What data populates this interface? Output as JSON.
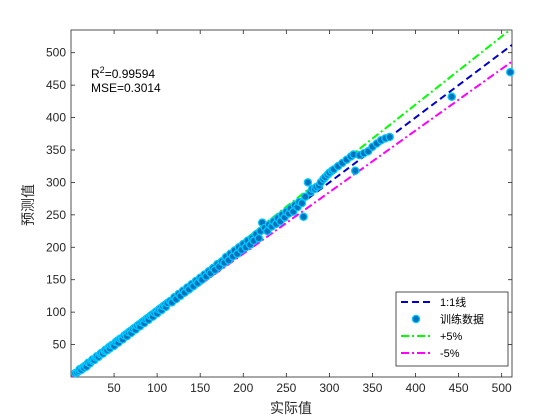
{
  "chart_data": {
    "type": "scatter",
    "xlabel": "实际值",
    "ylabel": "预测值",
    "xlim": [
      0,
      512
    ],
    "ylim": [
      0,
      535
    ],
    "xticks": [
      50,
      100,
      150,
      200,
      250,
      300,
      350,
      400,
      450,
      500
    ],
    "yticks": [
      50,
      100,
      150,
      200,
      250,
      300,
      350,
      400,
      450,
      500
    ],
    "grid": false,
    "legend_position": "bottom-right",
    "annotations": {
      "r2_prefix": "R",
      "r2_sup": "2",
      "r2_value": "=0.99594",
      "mse": "MSE=0.3014"
    },
    "series": [
      {
        "name": "1:1线",
        "kind": "line",
        "slope": 1.0,
        "color": "#0000cc",
        "dash": "dashed"
      },
      {
        "name": "训练数据",
        "kind": "scatter",
        "color": "#0072bd",
        "edge": "#00c8ff",
        "points": [
          [
            5,
            6
          ],
          [
            7,
            7
          ],
          [
            9,
            9
          ],
          [
            10,
            12
          ],
          [
            12,
            11
          ],
          [
            14,
            15
          ],
          [
            15,
            14
          ],
          [
            17,
            18
          ],
          [
            18,
            16
          ],
          [
            20,
            22
          ],
          [
            22,
            21
          ],
          [
            24,
            25
          ],
          [
            25,
            27
          ],
          [
            27,
            26
          ],
          [
            29,
            30
          ],
          [
            30,
            32
          ],
          [
            32,
            31
          ],
          [
            34,
            35
          ],
          [
            35,
            37
          ],
          [
            37,
            36
          ],
          [
            39,
            40
          ],
          [
            40,
            42
          ],
          [
            42,
            41
          ],
          [
            44,
            46
          ],
          [
            45,
            44
          ],
          [
            47,
            49
          ],
          [
            49,
            50
          ],
          [
            50,
            48
          ],
          [
            52,
            54
          ],
          [
            54,
            56
          ],
          [
            55,
            53
          ],
          [
            57,
            59
          ],
          [
            59,
            60
          ],
          [
            60,
            58
          ],
          [
            62,
            64
          ],
          [
            64,
            66
          ],
          [
            65,
            63
          ],
          [
            67,
            69
          ],
          [
            69,
            71
          ],
          [
            70,
            68
          ],
          [
            72,
            74
          ],
          [
            74,
            76
          ],
          [
            75,
            73
          ],
          [
            77,
            79
          ],
          [
            79,
            81
          ],
          [
            80,
            78
          ],
          [
            82,
            84
          ],
          [
            84,
            86
          ],
          [
            85,
            83
          ],
          [
            87,
            89
          ],
          [
            89,
            91
          ],
          [
            90,
            88
          ],
          [
            92,
            94
          ],
          [
            94,
            96
          ],
          [
            95,
            93
          ],
          [
            97,
            99
          ],
          [
            99,
            101
          ],
          [
            100,
            98
          ],
          [
            102,
            104
          ],
          [
            104,
            106
          ],
          [
            105,
            103
          ],
          [
            107,
            109
          ],
          [
            109,
            111
          ],
          [
            110,
            108
          ],
          [
            112,
            114
          ],
          [
            115,
            117
          ],
          [
            117,
            115
          ],
          [
            120,
            123
          ],
          [
            122,
            120
          ],
          [
            125,
            128
          ],
          [
            127,
            125
          ],
          [
            130,
            133
          ],
          [
            132,
            130
          ],
          [
            135,
            138
          ],
          [
            137,
            135
          ],
          [
            140,
            143
          ],
          [
            142,
            140
          ],
          [
            145,
            148
          ],
          [
            147,
            145
          ],
          [
            150,
            153
          ],
          [
            152,
            150
          ],
          [
            155,
            158
          ],
          [
            157,
            155
          ],
          [
            160,
            163
          ],
          [
            162,
            160
          ],
          [
            165,
            168
          ],
          [
            167,
            165
          ],
          [
            170,
            174
          ],
          [
            172,
            170
          ],
          [
            175,
            178
          ],
          [
            178,
            176
          ],
          [
            180,
            185
          ],
          [
            183,
            180
          ],
          [
            185,
            190
          ],
          [
            188,
            186
          ],
          [
            190,
            195
          ],
          [
            193,
            190
          ],
          [
            195,
            200
          ],
          [
            198,
            196
          ],
          [
            200,
            205
          ],
          [
            203,
            200
          ],
          [
            205,
            210
          ],
          [
            208,
            204
          ],
          [
            210,
            214
          ],
          [
            212,
            210
          ],
          [
            215,
            220
          ],
          [
            218,
            214
          ],
          [
            220,
            225
          ],
          [
            222,
            238
          ],
          [
            225,
            230
          ],
          [
            228,
            225
          ],
          [
            230,
            235
          ],
          [
            233,
            232
          ],
          [
            235,
            240
          ],
          [
            238,
            236
          ],
          [
            240,
            245
          ],
          [
            243,
            240
          ],
          [
            245,
            250
          ],
          [
            248,
            246
          ],
          [
            250,
            255
          ],
          [
            253,
            252
          ],
          [
            255,
            260
          ],
          [
            258,
            255
          ],
          [
            260,
            265
          ],
          [
            263,
            262
          ],
          [
            265,
            270
          ],
          [
            268,
            268
          ],
          [
            270,
            247
          ],
          [
            272,
            278
          ],
          [
            275,
            300
          ],
          [
            278,
            285
          ],
          [
            280,
            290
          ],
          [
            283,
            290
          ],
          [
            285,
            293
          ],
          [
            288,
            295
          ],
          [
            290,
            300
          ],
          [
            293,
            305
          ],
          [
            295,
            308
          ],
          [
            298,
            312
          ],
          [
            300,
            315
          ],
          [
            303,
            318
          ],
          [
            305,
            320
          ],
          [
            310,
            325
          ],
          [
            315,
            330
          ],
          [
            320,
            335
          ],
          [
            325,
            340
          ],
          [
            328,
            343
          ],
          [
            330,
            318
          ],
          [
            335,
            342
          ],
          [
            340,
            345
          ],
          [
            345,
            348
          ],
          [
            350,
            355
          ],
          [
            355,
            360
          ],
          [
            360,
            365
          ],
          [
            365,
            368
          ],
          [
            370,
            370
          ],
          [
            442,
            432
          ],
          [
            510,
            470
          ]
        ]
      },
      {
        "name": "+5%",
        "kind": "line",
        "slope": 1.05,
        "color": "#00ff00",
        "dash": "dashdot"
      },
      {
        "name": "-5%",
        "kind": "line",
        "slope": 0.95,
        "color": "#ff00ff",
        "dash": "dashdot"
      }
    ]
  }
}
